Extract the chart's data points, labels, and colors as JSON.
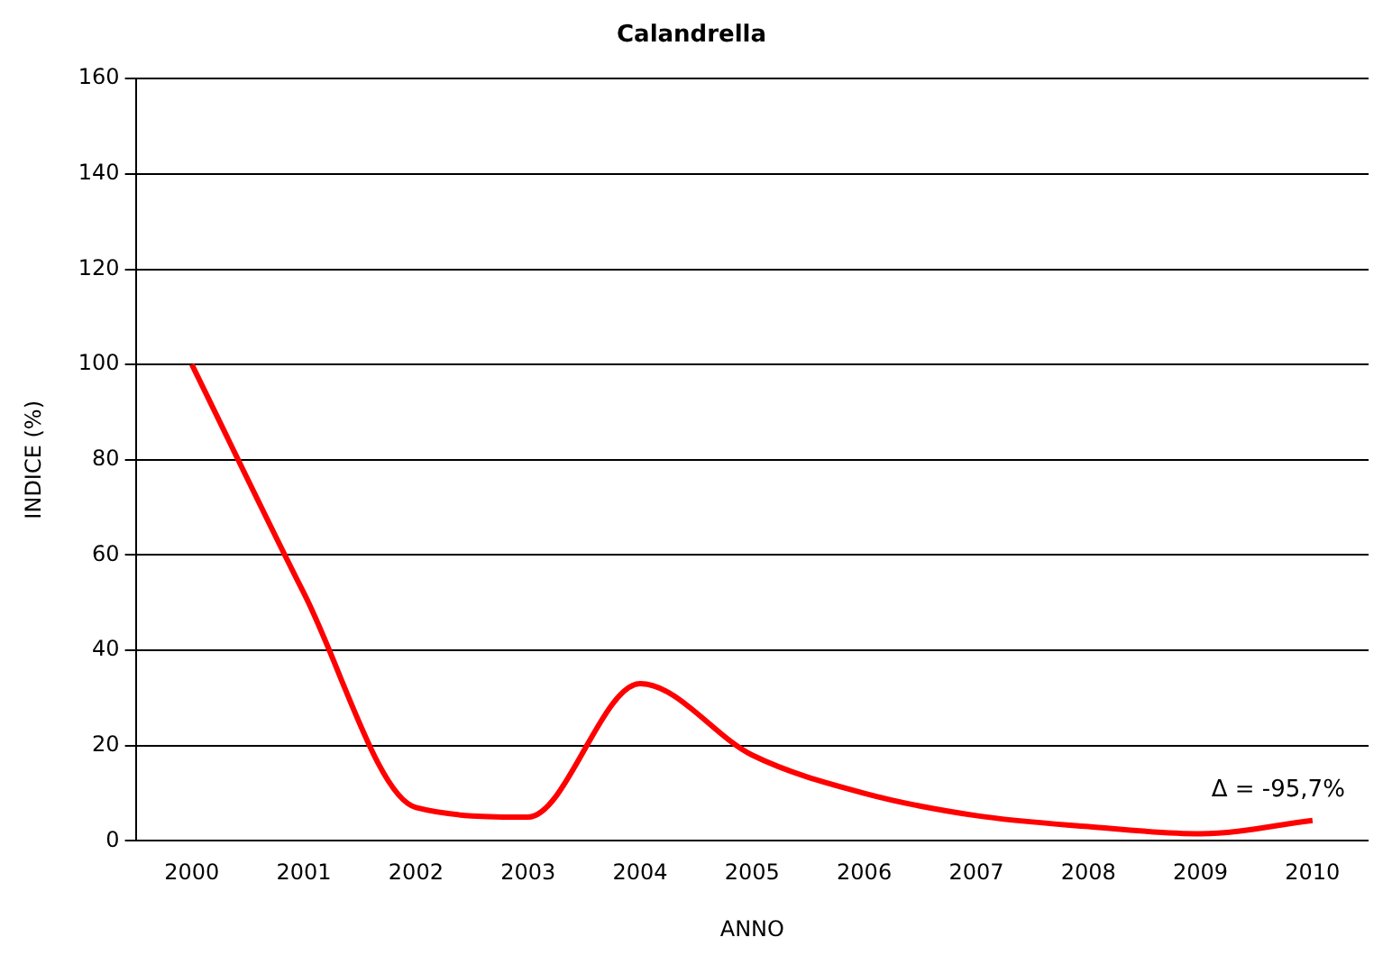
{
  "chart_data": {
    "type": "line",
    "title": "Calandrella",
    "xlabel": "ANNO",
    "ylabel": "INDICE (%)",
    "categories": [
      "2000",
      "2001",
      "2002",
      "2003",
      "2004",
      "2005",
      "2006",
      "2007",
      "2008",
      "2009",
      "2010"
    ],
    "series": [
      {
        "color": "#ff0000",
        "values": [
          100,
          52,
          7,
          5,
          33,
          18,
          10,
          5.3,
          3,
          1.5,
          4.3
        ]
      }
    ],
    "ylim": [
      0,
      160
    ],
    "yticks": [
      0,
      20,
      40,
      60,
      80,
      100,
      120,
      140,
      160
    ],
    "grid": "y",
    "legend": false,
    "marker": "none",
    "line_style": "solid",
    "annotations": [
      {
        "text": "Δ = -95,7%",
        "x": "2010",
        "y": 4.3
      }
    ]
  }
}
